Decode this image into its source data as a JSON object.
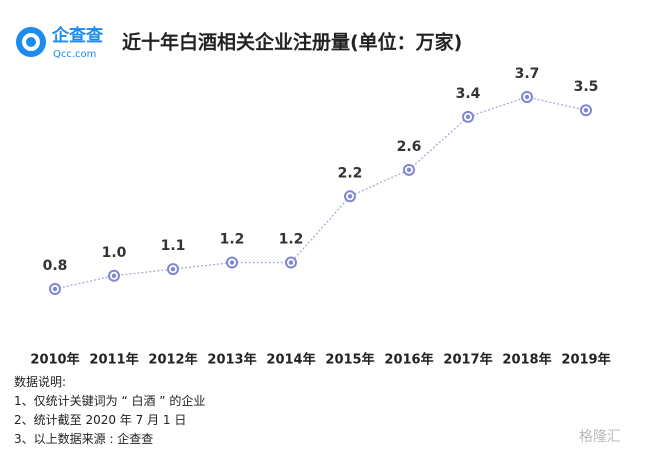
{
  "logo": {
    "name": "企查查",
    "domain": "Qcc.com"
  },
  "chart_data": {
    "type": "line",
    "title": "近十年白酒相关企业注册量(单位：万家)",
    "categories": [
      "2010年",
      "2011年",
      "2012年",
      "2013年",
      "2014年",
      "2015年",
      "2016年",
      "2017年",
      "2018年",
      "2019年"
    ],
    "series": [
      {
        "color": "#8086d4",
        "values": [
          0.8,
          1.0,
          1.1,
          1.2,
          1.2,
          2.2,
          2.6,
          3.4,
          3.7,
          3.5
        ],
        "value_labels": [
          "0.8",
          "1.0",
          "1.1",
          "1.2",
          "1.2",
          "2.2",
          "2.6",
          "3.4",
          "3.7",
          "3.5"
        ]
      }
    ]
  },
  "notes": {
    "heading": "数据说明:",
    "items": [
      "1、仅统计关键词为 “ 白酒 ” 的企业",
      "2、统计截至 2020 年 7 月 1 日",
      "3、以上数据来源 : 企查查"
    ]
  },
  "watermark": "格隆汇"
}
